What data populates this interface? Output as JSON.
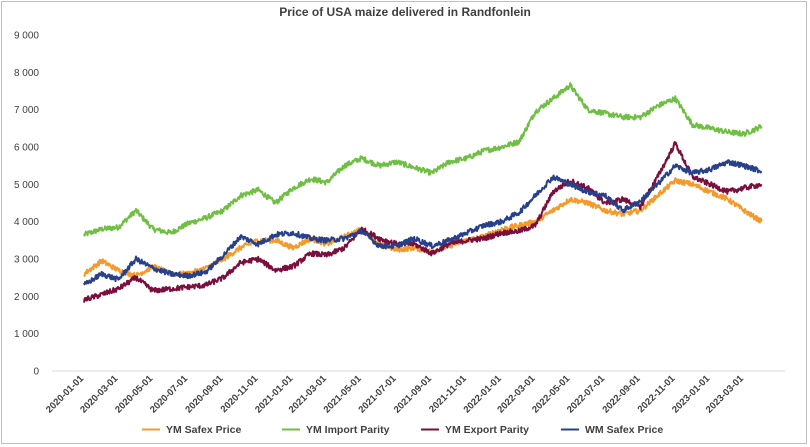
{
  "chart_data": {
    "type": "line",
    "title": "Price of USA maize delivered in Randfonlein",
    "xlabel": "",
    "ylabel": "",
    "ylim": [
      0,
      9000
    ],
    "y_ticks": [
      "0",
      "1 000",
      "2 000",
      "3 000",
      "4 000",
      "5 000",
      "6 000",
      "7 000",
      "8 000",
      "9 000"
    ],
    "y_tick_values": [
      0,
      1000,
      2000,
      3000,
      4000,
      5000,
      6000,
      7000,
      8000,
      9000
    ],
    "x_ticks": [
      "2020-01-01",
      "2020-03-01",
      "2020-05-01",
      "2020-07-01",
      "2020-09-01",
      "2020-11-01",
      "2021-01-01",
      "2021-03-01",
      "2021-05-01",
      "2021-07-01",
      "2021-09-01",
      "2021-11-01",
      "2022-01-01",
      "2022-03-01",
      "2022-05-01",
      "2022-07-01",
      "2022-09-01",
      "2022-11-01",
      "2023-01-01",
      "2023-03-01"
    ],
    "grid": false,
    "legend_position": "bottom",
    "x": [
      "2020-01-01",
      "2020-02-01",
      "2020-03-01",
      "2020-04-01",
      "2020-05-01",
      "2020-06-01",
      "2020-07-01",
      "2020-08-01",
      "2020-09-01",
      "2020-10-01",
      "2020-11-01",
      "2020-12-01",
      "2021-01-01",
      "2021-02-01",
      "2021-03-01",
      "2021-04-01",
      "2021-05-01",
      "2021-06-01",
      "2021-07-01",
      "2021-08-01",
      "2021-09-01",
      "2021-10-01",
      "2021-11-01",
      "2021-12-01",
      "2022-01-01",
      "2022-02-01",
      "2022-03-01",
      "2022-04-01",
      "2022-05-01",
      "2022-06-01",
      "2022-07-01",
      "2022-08-01",
      "2022-09-01",
      "2022-10-01",
      "2022-11-01",
      "2022-12-01",
      "2023-01-01",
      "2023-02-01",
      "2023-03-01",
      "2023-04-01"
    ],
    "series": [
      {
        "name": "YM Safex Price",
        "color": "#f39a2b",
        "values": [
          2600,
          2950,
          2700,
          2550,
          2800,
          2600,
          2600,
          2750,
          3000,
          3300,
          3500,
          3500,
          3300,
          3550,
          3400,
          3600,
          3800,
          3400,
          3250,
          3300,
          3200,
          3350,
          3500,
          3600,
          3800,
          3900,
          4000,
          4300,
          4600,
          4500,
          4300,
          4200,
          4300,
          4700,
          5100,
          5000,
          4800,
          4600,
          4300,
          4000
        ]
      },
      {
        "name": "YM Import Parity",
        "color": "#6fbf43",
        "values": [
          3650,
          3800,
          3850,
          4300,
          3800,
          3700,
          3950,
          4100,
          4300,
          4700,
          4850,
          4500,
          4900,
          5150,
          5050,
          5500,
          5700,
          5500,
          5600,
          5450,
          5300,
          5600,
          5700,
          5900,
          6000,
          6150,
          6950,
          7300,
          7650,
          7000,
          6900,
          6800,
          6800,
          7100,
          7300,
          6600,
          6500,
          6400,
          6350,
          6550
        ]
      },
      {
        "name": "YM Export Parity",
        "color": "#7a0f3d",
        "values": [
          1900,
          2050,
          2200,
          2500,
          2150,
          2200,
          2250,
          2300,
          2500,
          2900,
          3000,
          2700,
          2800,
          3150,
          3100,
          3300,
          3800,
          3550,
          3400,
          3400,
          3150,
          3400,
          3500,
          3550,
          3700,
          3750,
          3900,
          4800,
          5100,
          4900,
          4500,
          4600,
          4400,
          5200,
          6100,
          5200,
          5000,
          4800,
          4900,
          5000
        ]
      },
      {
        "name": "WM Safex Price",
        "color": "#27408b",
        "values": [
          2300,
          2600,
          2450,
          3000,
          2750,
          2600,
          2550,
          2650,
          3100,
          3600,
          3400,
          3650,
          3700,
          3550,
          3500,
          3550,
          3750,
          3350,
          3350,
          3550,
          3350,
          3500,
          3700,
          3900,
          4000,
          4250,
          4700,
          5200,
          5000,
          4800,
          4700,
          4300,
          4550,
          5000,
          5500,
          5300,
          5400,
          5600,
          5500,
          5350
        ]
      }
    ]
  }
}
